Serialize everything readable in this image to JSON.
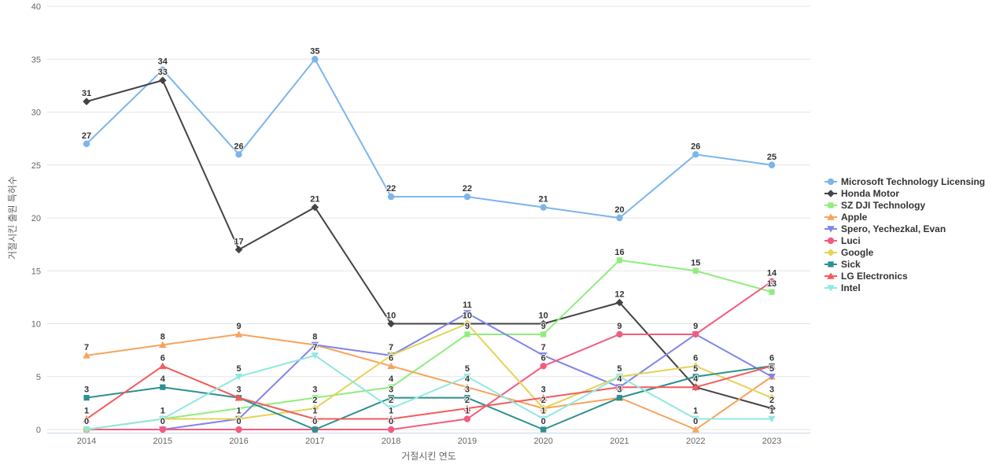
{
  "chart": {
    "background": "#ffffff",
    "gridline_color": "#e6e6e6",
    "xaxis_line_color": "#ccd6eb",
    "tick_color": "#666666",
    "label_color": "#333333"
  },
  "chart_data": {
    "type": "line",
    "title": "",
    "xlabel": "거절시킨 연도",
    "ylabel": "거절시킨 출원 특허수",
    "x": [
      2014,
      2015,
      2016,
      2017,
      2018,
      2019,
      2020,
      2021,
      2022,
      2023
    ],
    "ylim": [
      0,
      40
    ],
    "yticks": [
      0,
      5,
      10,
      15,
      20,
      25,
      30,
      35,
      40
    ],
    "grid": "horizontal-only",
    "legend_position": "right",
    "point_labels": "shown above each point, overlapping duplicates merged",
    "series": [
      {
        "name": "Microsoft Technology Licensing",
        "color": "#7cb5ec",
        "marker": "circle",
        "values": [
          27,
          34,
          26,
          35,
          22,
          22,
          21,
          20,
          26,
          25
        ]
      },
      {
        "name": "Honda Motor",
        "color": "#434348",
        "marker": "diamond",
        "values": [
          31,
          33,
          17,
          21,
          10,
          10,
          10,
          12,
          4,
          2
        ]
      },
      {
        "name": "SZ DJI Technology",
        "color": "#90ed7d",
        "marker": "square",
        "values": [
          0,
          1,
          null,
          3,
          4,
          9,
          9,
          16,
          15,
          13
        ]
      },
      {
        "name": "Apple",
        "color": "#f7a35c",
        "marker": "triangle",
        "values": [
          7,
          8,
          9,
          8,
          6,
          4,
          2,
          3,
          0,
          5
        ]
      },
      {
        "name": "Spero, Yechezkal, Evan",
        "color": "#8085e9",
        "marker": "triangle-down",
        "values": [
          null,
          0,
          1,
          8,
          7,
          11,
          7,
          4,
          9,
          5
        ]
      },
      {
        "name": "Luci",
        "color": "#f15c80",
        "marker": "circle",
        "values": [
          0,
          0,
          0,
          0,
          0,
          1,
          6,
          9,
          9,
          14
        ]
      },
      {
        "name": "Google",
        "color": "#e4d354",
        "marker": "diamond",
        "values": [
          0,
          1,
          1,
          2,
          7,
          10,
          2,
          5,
          6,
          3
        ]
      },
      {
        "name": "Sick",
        "color": "#2b908f",
        "marker": "square",
        "values": [
          3,
          4,
          3,
          0,
          3,
          3,
          0,
          3,
          5,
          6
        ]
      },
      {
        "name": "LG Electronics",
        "color": "#f45b5b",
        "marker": "triangle",
        "values": [
          1,
          6,
          3,
          1,
          1,
          2,
          3,
          4,
          4,
          6
        ]
      },
      {
        "name": "Intel",
        "color": "#91e8e1",
        "marker": "triangle-down",
        "values": [
          0,
          1,
          5,
          7,
          2,
          5,
          1,
          5,
          1,
          1
        ]
      }
    ]
  }
}
